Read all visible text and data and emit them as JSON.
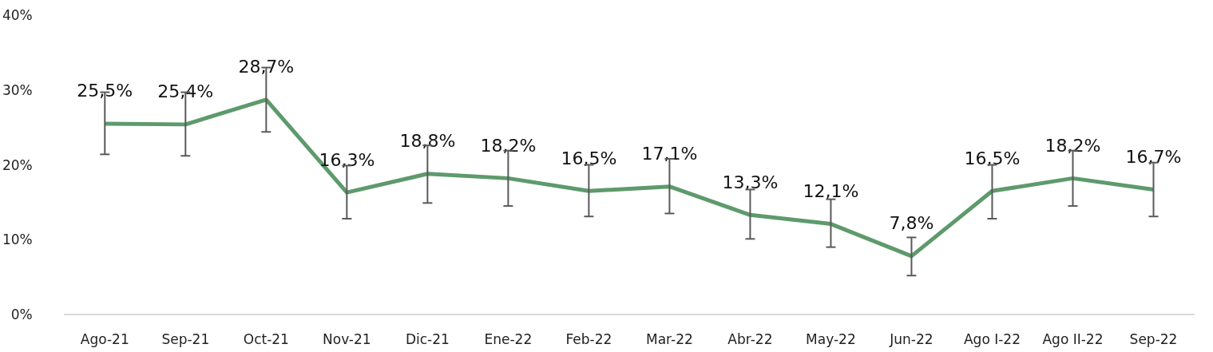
{
  "chart_data": {
    "type": "line",
    "categories": [
      "Ago-21",
      "Sep-21",
      "Oct-21",
      "Nov-21",
      "Dic-21",
      "Ene-22",
      "Feb-22",
      "Mar-22",
      "Abr-22",
      "May-22",
      "Jun-22",
      "Ago I-22",
      "Ago II-22",
      "Sep-22"
    ],
    "series": [
      {
        "color": "#5e9a6c",
        "values": [
          25.5,
          25.4,
          28.7,
          16.3,
          18.8,
          18.2,
          16.5,
          17.1,
          13.3,
          12.1,
          7.8,
          16.5,
          18.2,
          16.7
        ],
        "value_labels": [
          "25,5%",
          "25,4%",
          "28,7%",
          "16,3%",
          "18,8%",
          "18,2%",
          "16,5%",
          "17,1%",
          "13,3%",
          "12,1%",
          "7,8%",
          "16,5%",
          "18,2%",
          "16,7%"
        ],
        "errors": [
          [
            21.4,
            29.7
          ],
          [
            21.2,
            29.7
          ],
          [
            24.4,
            33.0
          ],
          [
            12.8,
            19.9
          ],
          [
            14.9,
            22.6
          ],
          [
            14.5,
            21.9
          ],
          [
            13.1,
            20.0
          ],
          [
            13.5,
            20.8
          ],
          [
            10.1,
            16.7
          ],
          [
            9.0,
            15.4
          ],
          [
            5.2,
            10.3
          ],
          [
            12.8,
            20.0
          ],
          [
            14.5,
            21.9
          ],
          [
            13.1,
            20.3
          ]
        ]
      }
    ],
    "ylim": [
      0,
      40
    ],
    "yticks": [
      {
        "value": 0,
        "label": "0%"
      },
      {
        "value": 10,
        "label": "10%"
      },
      {
        "value": 20,
        "label": "20%"
      },
      {
        "value": 30,
        "label": "30%"
      },
      {
        "value": 40,
        "label": "40%"
      }
    ],
    "grid": false,
    "marker": "none",
    "line_style": "solid"
  }
}
